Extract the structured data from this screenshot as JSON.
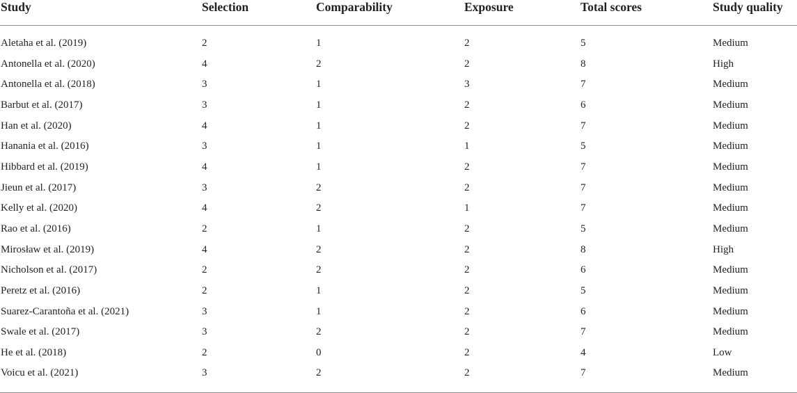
{
  "table": {
    "headers": [
      "Study",
      "Selection",
      "Comparability",
      "Exposure",
      "Total scores",
      "Study quality"
    ],
    "rows": [
      [
        "Aletaha et al. (2019)",
        "2",
        "1",
        "2",
        "5",
        "Medium"
      ],
      [
        "Antonella et al. (2020)",
        "4",
        "2",
        "2",
        "8",
        "High"
      ],
      [
        "Antonella et al. (2018)",
        "3",
        "1",
        "3",
        "7",
        "Medium"
      ],
      [
        "Barbut et al. (2017)",
        "3",
        "1",
        "2",
        "6",
        "Medium"
      ],
      [
        "Han et al. (2020)",
        "4",
        "1",
        "2",
        "7",
        "Medium"
      ],
      [
        "Hanania et al. (2016)",
        "3",
        "1",
        "1",
        "5",
        "Medium"
      ],
      [
        "Hibbard et al. (2019)",
        "4",
        "1",
        "2",
        "7",
        "Medium"
      ],
      [
        "Jieun et al. (2017)",
        "3",
        "2",
        "2",
        "7",
        "Medium"
      ],
      [
        "Kelly et al. (2020)",
        "4",
        "2",
        "1",
        "7",
        "Medium"
      ],
      [
        "Rao et al. (2016)",
        "2",
        "1",
        "2",
        "5",
        "Medium"
      ],
      [
        "Mirosław et al. (2019)",
        "4",
        "2",
        "2",
        "8",
        "High"
      ],
      [
        "Nicholson et al. (2017)",
        "2",
        "2",
        "2",
        "6",
        "Medium"
      ],
      [
        "Peretz et al. (2016)",
        "2",
        "1",
        "2",
        "5",
        "Medium"
      ],
      [
        "Suarez-Carantoña et al. (2021)",
        "3",
        "1",
        "2",
        "6",
        "Medium"
      ],
      [
        "Swale et al. (2017)",
        "3",
        "2",
        "2",
        "7",
        "Medium"
      ],
      [
        "He et al. (2018)",
        "2",
        "0",
        "2",
        "4",
        "Low"
      ],
      [
        "Voicu et al. (2021)",
        "3",
        "2",
        "2",
        "7",
        "Medium"
      ]
    ]
  }
}
